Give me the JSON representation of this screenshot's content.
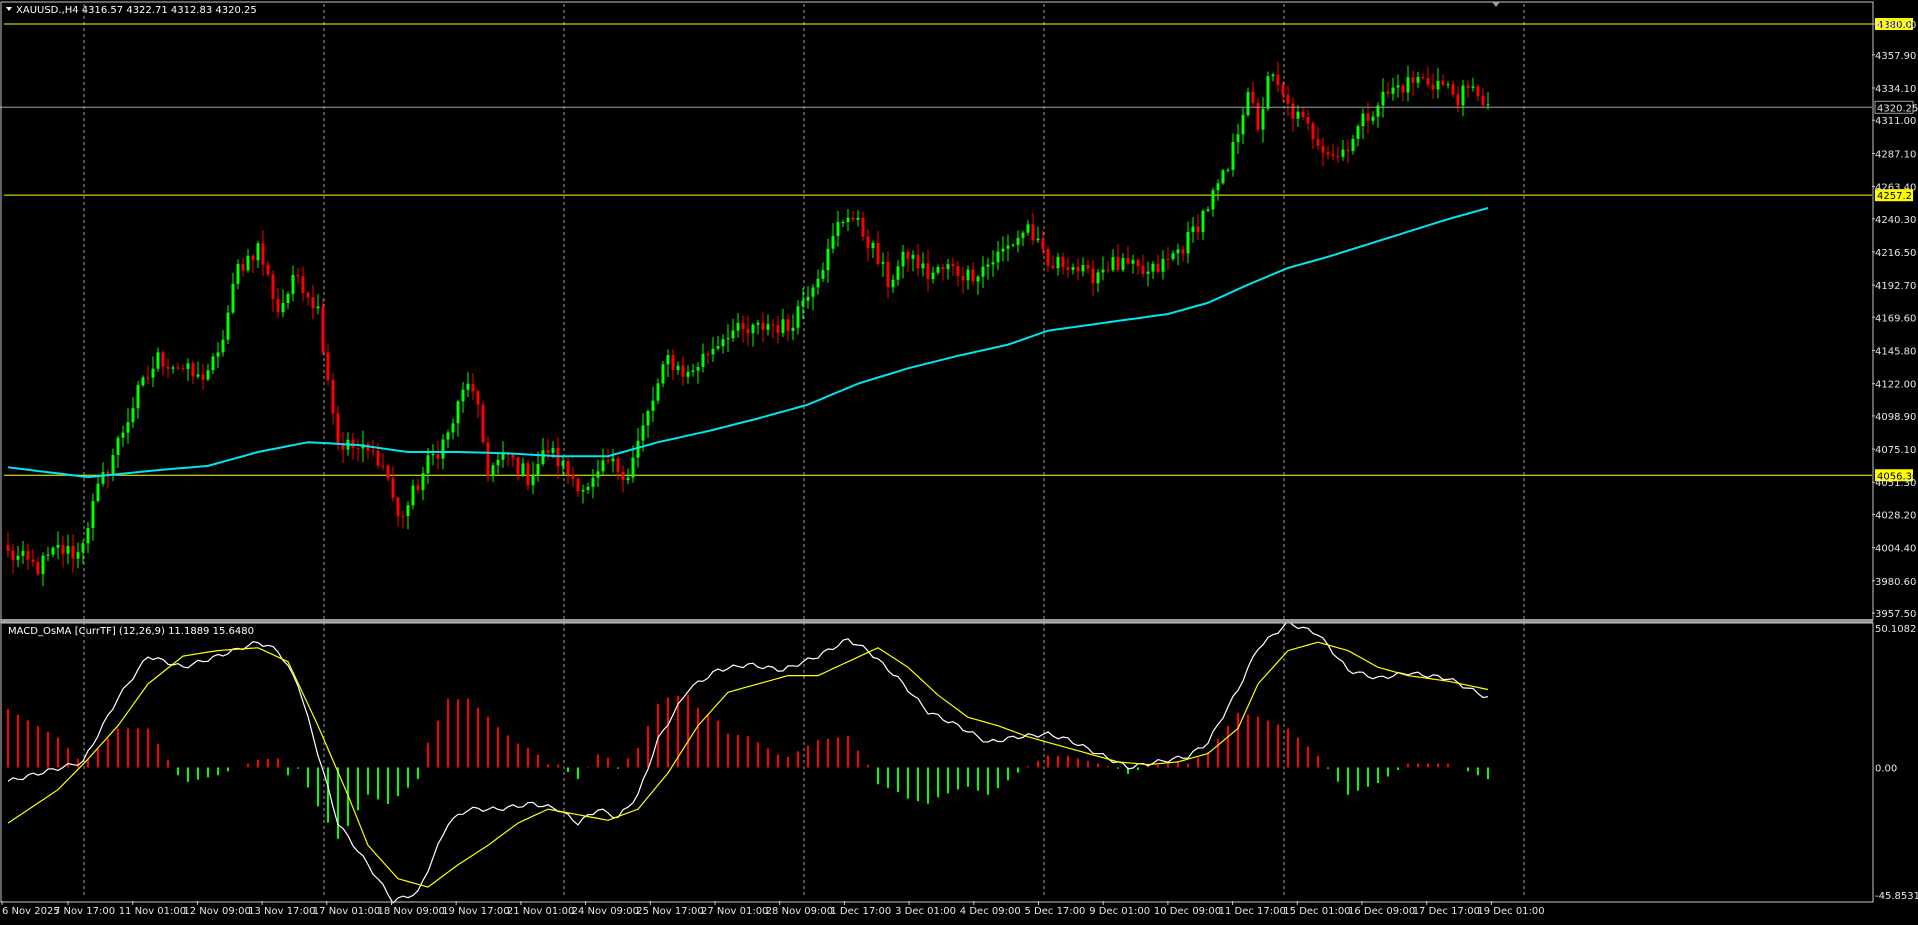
{
  "chart_data": {
    "type": "candlestick",
    "symbol_header": "XAUUSD.,H4  4316.57 4322.71 4312.83 4320.25",
    "colors": {
      "background": "#000000",
      "bull": "#00ff00",
      "bear": "#ff0000",
      "ma": "#00e5ee",
      "level_lines": "#ffff00",
      "grid": "#c8c8c8",
      "macd_line": "#ffffff",
      "signal_line": "#ffff00"
    },
    "price_axis": {
      "ylim": [
        3957.5,
        4380.0
      ],
      "ticks": [
        "4380.00",
        "4357.90",
        "4334.10",
        "4311.00",
        "4287.10",
        "4263.40",
        "4240.30",
        "4216.50",
        "4192.70",
        "4169.60",
        "4145.80",
        "4122.00",
        "4098.90",
        "4075.10",
        "4051.30",
        "4028.20",
        "4004.40",
        "3980.60",
        "3957.50"
      ]
    },
    "level_lines": [
      {
        "value": 4380.0,
        "label": "4380.00"
      },
      {
        "value": 4257.21,
        "label": "4257.21"
      },
      {
        "value": 4056.3,
        "label": "4056.30"
      }
    ],
    "current_price": {
      "value": 4320.25,
      "label": "4320.25"
    },
    "time_labels": [
      "6 Nov 2025",
      "7 Nov 17:00",
      "11 Nov 01:00",
      "12 Nov 09:00",
      "13 Nov 17:00",
      "17 Nov 01:00",
      "18 Nov 09:00",
      "19 Nov 17:00",
      "21 Nov 01:00",
      "24 Nov 09:00",
      "25 Nov 17:00",
      "27 Nov 01:00",
      "28 Nov 09:00",
      "1 Dec 17:00",
      "3 Dec 01:00",
      "4 Dec 09:00",
      "5 Dec 17:00",
      "9 Dec 01:00",
      "10 Dec 09:00",
      "11 Dec 17:00",
      "15 Dec 01:00",
      "16 Dec 09:00",
      "17 Dec 17:00",
      "19 Dec 01:00"
    ],
    "close_keypoints": [
      [
        0,
        4000
      ],
      [
        6,
        3990
      ],
      [
        10,
        4003
      ],
      [
        14,
        4000
      ],
      [
        18,
        4045
      ],
      [
        22,
        4080
      ],
      [
        26,
        4115
      ],
      [
        30,
        4140
      ],
      [
        34,
        4135
      ],
      [
        38,
        4125
      ],
      [
        42,
        4140
      ],
      [
        46,
        4205
      ],
      [
        50,
        4220
      ],
      [
        54,
        4175
      ],
      [
        58,
        4200
      ],
      [
        62,
        4175
      ],
      [
        66,
        4080
      ],
      [
        70,
        4075
      ],
      [
        74,
        4070
      ],
      [
        76,
        4055
      ],
      [
        78,
        4025
      ],
      [
        80,
        4035
      ],
      [
        84,
        4065
      ],
      [
        88,
        4085
      ],
      [
        92,
        4125
      ],
      [
        94,
        4100
      ],
      [
        96,
        4060
      ],
      [
        100,
        4070
      ],
      [
        104,
        4055
      ],
      [
        108,
        4075
      ],
      [
        112,
        4058
      ],
      [
        116,
        4045
      ],
      [
        120,
        4065
      ],
      [
        124,
        4058
      ],
      [
        128,
        4100
      ],
      [
        132,
        4140
      ],
      [
        136,
        4128
      ],
      [
        140,
        4145
      ],
      [
        144,
        4160
      ],
      [
        148,
        4158
      ],
      [
        152,
        4165
      ],
      [
        156,
        4162
      ],
      [
        160,
        4190
      ],
      [
        164,
        4215
      ],
      [
        166,
        4235
      ],
      [
        168,
        4245
      ],
      [
        172,
        4225
      ],
      [
        176,
        4195
      ],
      [
        180,
        4215
      ],
      [
        184,
        4200
      ],
      [
        188,
        4205
      ],
      [
        192,
        4200
      ],
      [
        196,
        4208
      ],
      [
        200,
        4220
      ],
      [
        204,
        4235
      ],
      [
        208,
        4205
      ],
      [
        212,
        4210
      ],
      [
        216,
        4198
      ],
      [
        220,
        4208
      ],
      [
        224,
        4205
      ],
      [
        228,
        4200
      ],
      [
        232,
        4210
      ],
      [
        236,
        4225
      ],
      [
        240,
        4250
      ],
      [
        244,
        4275
      ],
      [
        248,
        4335
      ],
      [
        250,
        4300
      ],
      [
        252,
        4345
      ],
      [
        256,
        4320
      ],
      [
        260,
        4305
      ],
      [
        264,
        4290
      ],
      [
        266,
        4285
      ],
      [
        270,
        4305
      ],
      [
        274,
        4325
      ],
      [
        278,
        4335
      ],
      [
        282,
        4340
      ],
      [
        286,
        4338
      ],
      [
        290,
        4328
      ],
      [
        294,
        4332
      ],
      [
        296,
        4320
      ]
    ],
    "ma_keypoints": [
      [
        0,
        4062
      ],
      [
        16,
        4055
      ],
      [
        30,
        4060
      ],
      [
        40,
        4063
      ],
      [
        50,
        4073
      ],
      [
        60,
        4080
      ],
      [
        70,
        4078
      ],
      [
        80,
        4073
      ],
      [
        90,
        4073
      ],
      [
        100,
        4072
      ],
      [
        110,
        4070
      ],
      [
        120,
        4070
      ],
      [
        130,
        4080
      ],
      [
        140,
        4088
      ],
      [
        150,
        4097
      ],
      [
        160,
        4107
      ],
      [
        170,
        4122
      ],
      [
        180,
        4133
      ],
      [
        190,
        4142
      ],
      [
        200,
        4150
      ],
      [
        208,
        4160
      ],
      [
        216,
        4164
      ],
      [
        224,
        4168
      ],
      [
        232,
        4172
      ],
      [
        240,
        4180
      ],
      [
        248,
        4193
      ],
      [
        256,
        4205
      ],
      [
        264,
        4213
      ],
      [
        272,
        4222
      ],
      [
        280,
        4231
      ],
      [
        288,
        4240
      ],
      [
        296,
        4248
      ]
    ],
    "indicator": {
      "label": "MACD_OsMA [CurrTF] (12,26,9) 11.1889 15.6480",
      "ylim": [
        -45.8531,
        50.1082
      ],
      "ticks": [
        "50.1082",
        "0.00",
        "-45.8531"
      ],
      "macd_keypoints": [
        [
          0,
          -5
        ],
        [
          15,
          2
        ],
        [
          22,
          25
        ],
        [
          28,
          40
        ],
        [
          35,
          36
        ],
        [
          42,
          40
        ],
        [
          50,
          45
        ],
        [
          54,
          42
        ],
        [
          58,
          30
        ],
        [
          62,
          5
        ],
        [
          66,
          -20
        ],
        [
          72,
          -35
        ],
        [
          77,
          -48
        ],
        [
          82,
          -45
        ],
        [
          88,
          -20
        ],
        [
          92,
          -15
        ],
        [
          98,
          -15
        ],
        [
          105,
          -13
        ],
        [
          110,
          -15
        ],
        [
          114,
          -20
        ],
        [
          118,
          -15
        ],
        [
          122,
          -18
        ],
        [
          126,
          -10
        ],
        [
          130,
          10
        ],
        [
          136,
          28
        ],
        [
          142,
          35
        ],
        [
          148,
          37
        ],
        [
          155,
          35
        ],
        [
          162,
          40
        ],
        [
          168,
          46
        ],
        [
          172,
          42
        ],
        [
          178,
          32
        ],
        [
          184,
          20
        ],
        [
          190,
          15
        ],
        [
          196,
          9
        ],
        [
          202,
          11
        ],
        [
          208,
          12
        ],
        [
          212,
          10
        ],
        [
          218,
          5
        ],
        [
          224,
          0
        ],
        [
          230,
          2
        ],
        [
          236,
          4
        ],
        [
          240,
          9
        ],
        [
          246,
          28
        ],
        [
          250,
          43
        ],
        [
          256,
          52
        ],
        [
          262,
          48
        ],
        [
          268,
          35
        ],
        [
          274,
          32
        ],
        [
          280,
          34
        ],
        [
          288,
          32
        ],
        [
          296,
          25
        ]
      ],
      "signal_keypoints": [
        [
          0,
          -20
        ],
        [
          10,
          -8
        ],
        [
          16,
          3
        ],
        [
          22,
          15
        ],
        [
          28,
          30
        ],
        [
          35,
          40
        ],
        [
          42,
          42
        ],
        [
          50,
          43
        ],
        [
          56,
          38
        ],
        [
          62,
          15
        ],
        [
          68,
          -10
        ],
        [
          72,
          -28
        ],
        [
          78,
          -40
        ],
        [
          84,
          -43
        ],
        [
          90,
          -35
        ],
        [
          96,
          -28
        ],
        [
          102,
          -20
        ],
        [
          108,
          -15
        ],
        [
          114,
          -17
        ],
        [
          120,
          -19
        ],
        [
          126,
          -15
        ],
        [
          132,
          -2
        ],
        [
          138,
          15
        ],
        [
          144,
          27
        ],
        [
          150,
          30
        ],
        [
          156,
          33
        ],
        [
          162,
          33
        ],
        [
          168,
          38
        ],
        [
          174,
          43
        ],
        [
          180,
          36
        ],
        [
          186,
          26
        ],
        [
          192,
          18
        ],
        [
          198,
          15
        ],
        [
          204,
          11
        ],
        [
          210,
          8
        ],
        [
          216,
          5
        ],
        [
          222,
          2
        ],
        [
          228,
          1
        ],
        [
          234,
          2
        ],
        [
          240,
          5
        ],
        [
          246,
          14
        ],
        [
          250,
          30
        ],
        [
          256,
          42
        ],
        [
          262,
          45
        ],
        [
          268,
          42
        ],
        [
          274,
          36
        ],
        [
          280,
          33
        ],
        [
          288,
          31
        ],
        [
          296,
          28
        ]
      ]
    }
  }
}
